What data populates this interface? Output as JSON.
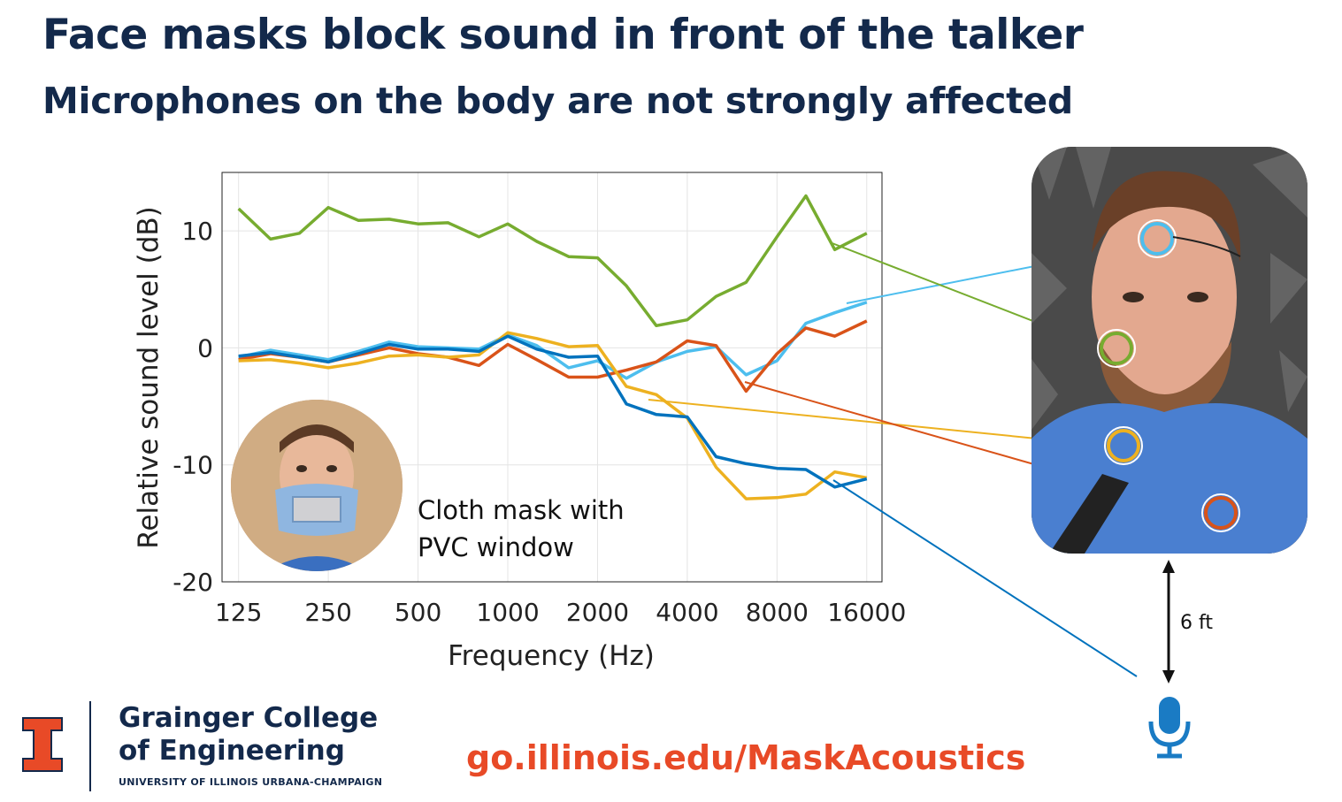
{
  "header": {
    "title": "Face masks block sound in front of the talker",
    "subtitle": "Microphones on the body are not strongly affected"
  },
  "inset": {
    "caption_line1": "Cloth mask with",
    "caption_line2": "PVC window"
  },
  "setup": {
    "distance_label": "6 ft"
  },
  "footer": {
    "college_line1": "Grainger College",
    "college_line2": "of Engineering",
    "university": "UNIVERSITY OF ILLINOIS URBANA-CHAMPAIGN",
    "url": "go.illinois.edu/MaskAcoustics"
  },
  "colors": {
    "title": "#13294b",
    "accent_orange": "#e84a27",
    "mic_blue": "#1a7bc4"
  },
  "chart_data": {
    "type": "line",
    "xlabel": "Frequency (Hz)",
    "ylabel": "Relative sound level (dB)",
    "xscale": "log",
    "xlim": [
      110,
      18000
    ],
    "ylim": [
      -20,
      15
    ],
    "xticks": [
      125,
      250,
      500,
      1000,
      2000,
      4000,
      8000,
      16000
    ],
    "yticks": [
      10,
      0,
      -10,
      -20
    ],
    "grid": true,
    "x": [
      125,
      160,
      200,
      250,
      315,
      400,
      500,
      630,
      800,
      1000,
      1250,
      1600,
      2000,
      2500,
      3150,
      4000,
      5000,
      6300,
      8000,
      10000,
      12500,
      16000
    ],
    "series": [
      {
        "color": "#77ac30",
        "values": [
          11.9,
          9.3,
          9.8,
          12.0,
          10.9,
          11.0,
          10.6,
          10.7,
          9.5,
          10.6,
          9.1,
          7.8,
          7.7,
          5.3,
          1.9,
          2.4,
          4.4,
          5.6,
          9.5,
          13.0,
          8.4,
          9.8
        ]
      },
      {
        "color": "#4dbeee",
        "values": [
          -0.8,
          -0.2,
          -0.6,
          -1.0,
          -0.3,
          0.5,
          0.1,
          0.0,
          -0.1,
          1.1,
          0.2,
          -1.7,
          -1.1,
          -2.6,
          -1.2,
          -0.3,
          0.1,
          -2.3,
          -1.1,
          2.1,
          3.0,
          3.9
        ]
      },
      {
        "color": "#d95319",
        "values": [
          -1.0,
          -0.5,
          -0.8,
          -1.2,
          -0.6,
          0.0,
          -0.5,
          -0.8,
          -1.5,
          0.3,
          -1.0,
          -2.5,
          -2.5,
          -1.9,
          -1.2,
          0.6,
          0.2,
          -3.7,
          -0.5,
          1.7,
          1.0,
          2.3
        ]
      },
      {
        "color": "#edb120",
        "values": [
          -1.1,
          -1.0,
          -1.3,
          -1.7,
          -1.3,
          -0.7,
          -0.6,
          -0.8,
          -0.6,
          1.3,
          0.8,
          0.1,
          0.2,
          -3.3,
          -4.0,
          -6.0,
          -10.2,
          -12.9,
          -12.8,
          -12.5,
          -10.6,
          -11.1
        ]
      },
      {
        "color": "#0072bd",
        "values": [
          -0.7,
          -0.4,
          -0.8,
          -1.2,
          -0.5,
          0.3,
          -0.1,
          -0.1,
          -0.3,
          1.0,
          -0.1,
          -0.8,
          -0.7,
          -4.8,
          -5.7,
          -5.9,
          -9.3,
          -9.9,
          -10.3,
          -10.4,
          -11.9,
          -11.2
        ]
      }
    ]
  }
}
